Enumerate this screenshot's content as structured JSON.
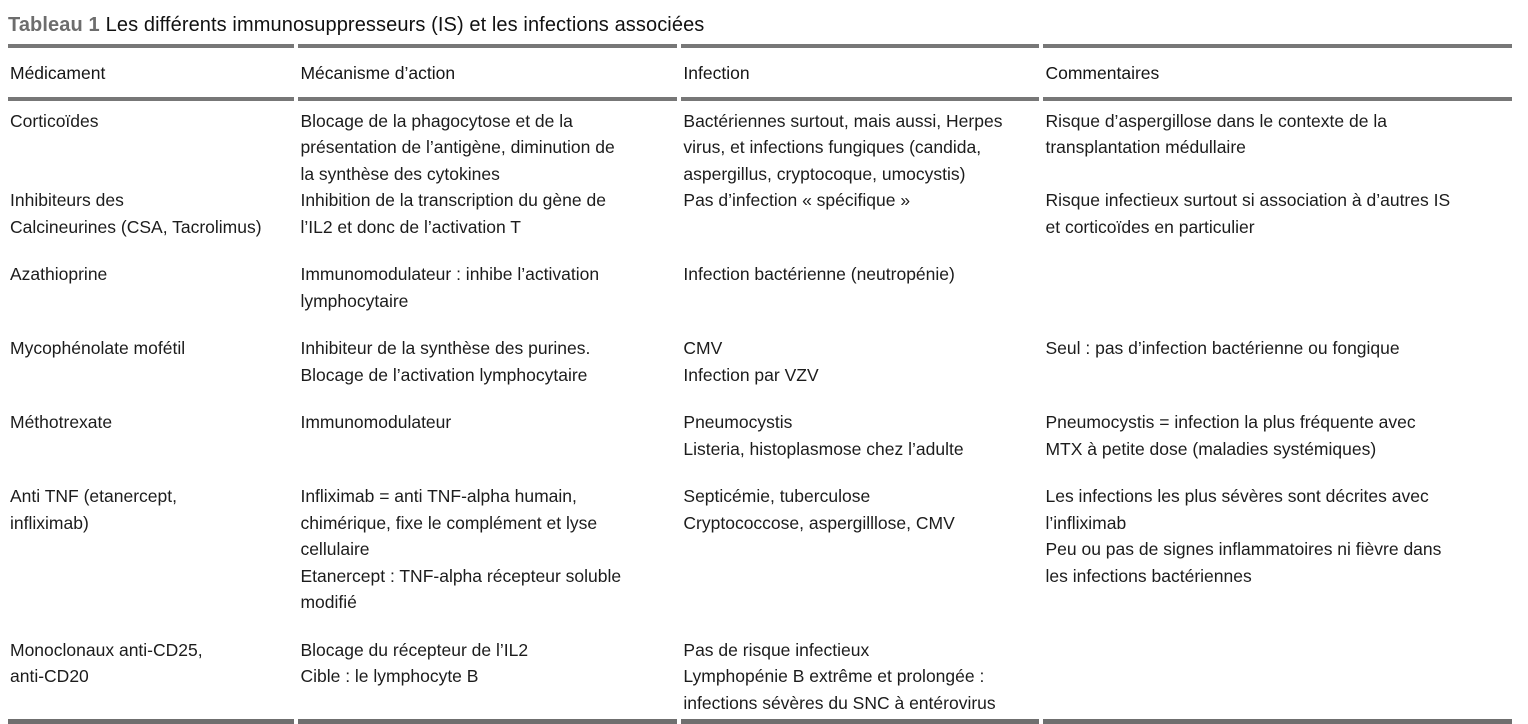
{
  "title": {
    "label": "Tableau 1",
    "text": "Les différents immunosuppresseurs (IS) et les infections associées"
  },
  "table": {
    "headers": [
      "Médicament",
      "Mécanisme d’action",
      "Infection",
      "Commentaires"
    ],
    "rows": [
      {
        "medicament": [
          "Corticoïdes"
        ],
        "mecanisme": [
          "Blocage de la phagocytose et de la",
          "présentation de l’antigène, diminution de",
          "la synthèse des cytokines"
        ],
        "infection": [
          "Bactériennes surtout, mais aussi, Herpes",
          "virus, et infections fungiques (candida,",
          "aspergillus, cryptocoque, umocystis)"
        ],
        "commentaires": [
          "Risque d’aspergillose dans le contexte de la",
          "transplantation médullaire"
        ]
      },
      {
        "medicament": [
          "Inhibiteurs des",
          "Calcineurines (CSA, Tacrolimus)"
        ],
        "mecanisme": [
          "Inhibition de la transcription du gène de",
          "l’IL2 et donc de l’activation T"
        ],
        "infection": [
          "Pas d’infection « spécifique »"
        ],
        "commentaires": [
          "Risque infectieux surtout si association à d’autres IS",
          "et corticoïdes en particulier"
        ]
      },
      {
        "medicament": [
          "Azathioprine"
        ],
        "mecanisme": [
          "Immunomodulateur : inhibe l’activation",
          "lymphocytaire"
        ],
        "infection": [
          "Infection bactérienne (neutropénie)"
        ],
        "commentaires": []
      },
      {
        "medicament": [
          "Mycophénolate mofétil"
        ],
        "mecanisme": [
          "Inhibiteur de la synthèse des purines.",
          "Blocage de l’activation lymphocytaire"
        ],
        "infection": [
          "CMV",
          "Infection par VZV"
        ],
        "commentaires": [
          "Seul : pas d’infection bactérienne ou fongique"
        ]
      },
      {
        "medicament": [
          "Méthotrexate"
        ],
        "mecanisme": [
          "Immunomodulateur"
        ],
        "infection": [
          "Pneumocystis",
          "Listeria, histoplasmose chez l’adulte"
        ],
        "commentaires": [
          "Pneumocystis = infection la plus fréquente avec",
          "MTX à petite dose (maladies systémiques)"
        ]
      },
      {
        "medicament": [
          "Anti TNF (etanercept,",
          "infliximab)"
        ],
        "mecanisme": [
          "Infliximab = anti TNF-alpha humain,",
          "chimérique, fixe le complément et lyse",
          "cellulaire",
          "Etanercept : TNF-alpha récepteur soluble",
          "modifié"
        ],
        "infection": [
          "Septicémie, tuberculose",
          "Cryptococcose, aspergilllose, CMV"
        ],
        "commentaires": [
          "Les infections les plus sévères sont décrites avec",
          "l’infliximab",
          "Peu ou pas de signes inflammatoires ni fièvre dans",
          "les infections bactériennes"
        ]
      },
      {
        "medicament": [
          "Monoclonaux anti-CD25,",
          "anti-CD20"
        ],
        "mecanisme": [
          "Blocage du récepteur de l’IL2",
          "Cible : le lymphocyte B"
        ],
        "infection": [
          "Pas de risque infectieux",
          "Lymphopénie B extrême et prolongée :",
          "infections sévères du SNC à entérovirus"
        ],
        "commentaires": []
      }
    ]
  }
}
